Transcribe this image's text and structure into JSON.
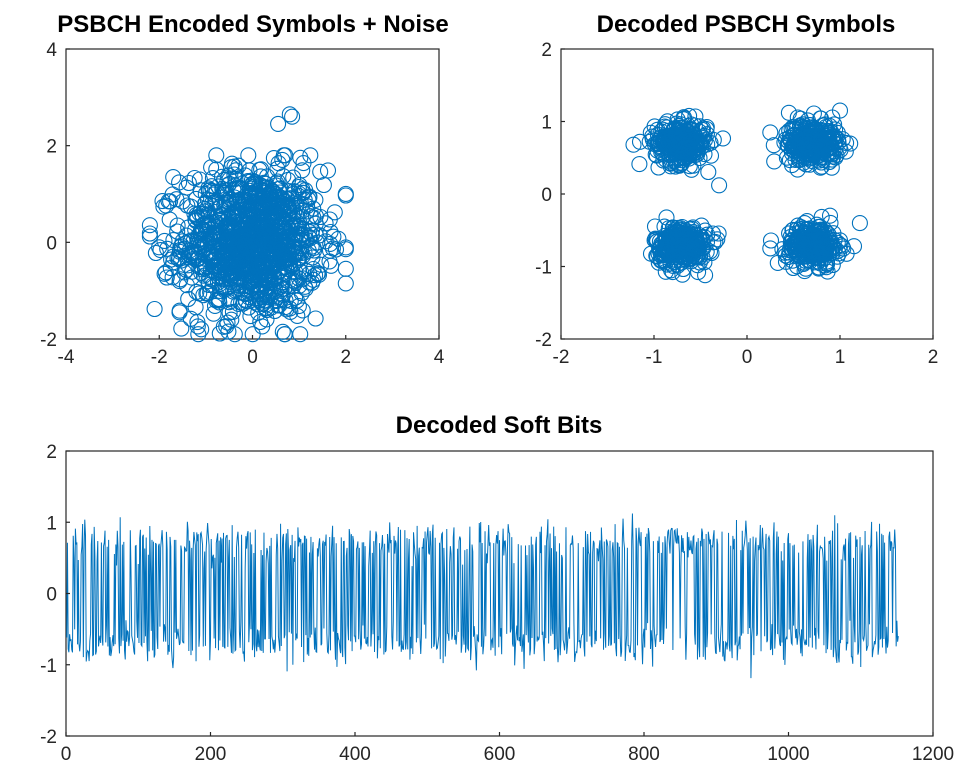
{
  "chart_data": [
    {
      "type": "scatter",
      "title": "PSBCH Encoded Symbols + Noise",
      "xlim": [
        -4,
        4
      ],
      "ylim": [
        -2,
        4
      ],
      "xticks": [
        "-4",
        "-2",
        "0",
        "2",
        "4"
      ],
      "yticks": [
        "-2",
        "0",
        "2",
        "4"
      ],
      "marker": "open-circle",
      "color": "#0072BD",
      "grid": false,
      "cluster": {
        "center": [
          0,
          0
        ],
        "std": 0.75,
        "count": 1200
      },
      "outliers": [
        [
          0.55,
          2.45
        ],
        [
          0.8,
          2.65
        ],
        [
          0.85,
          2.6
        ],
        [
          -2.2,
          0.12
        ],
        [
          -2.1,
          -1.38
        ],
        [
          2.0,
          0.97
        ],
        [
          -1.7,
          1.35
        ],
        [
          -1.1,
          -1.8
        ],
        [
          0.65,
          -1.85
        ]
      ]
    },
    {
      "type": "scatter",
      "title": "Decoded PSBCH Symbols",
      "xlim": [
        -2,
        2
      ],
      "ylim": [
        -2,
        2
      ],
      "xticks": [
        "-2",
        "-1",
        "0",
        "1",
        "2"
      ],
      "yticks": [
        "-2",
        "-1",
        "0",
        "1",
        "2"
      ],
      "marker": "open-circle",
      "color": "#0072BD",
      "grid": false,
      "clusters": [
        {
          "center": [
            -0.707,
            0.707
          ],
          "std": 0.14,
          "count": 300
        },
        {
          "center": [
            0.707,
            0.707
          ],
          "std": 0.14,
          "count": 300
        },
        {
          "center": [
            -0.707,
            -0.707
          ],
          "std": 0.14,
          "count": 300
        },
        {
          "center": [
            0.707,
            -0.707
          ],
          "std": 0.14,
          "count": 300
        }
      ],
      "outliers": [
        [
          -0.3,
          0.12
        ],
        [
          -1.15,
          0.72
        ],
        [
          -1.22,
          0.68
        ],
        [
          -0.45,
          -1.12
        ],
        [
          0.45,
          1.12
        ],
        [
          1.0,
          1.15
        ],
        [
          0.25,
          -0.75
        ],
        [
          1.15,
          -0.72
        ],
        [
          0.25,
          0.85
        ]
      ]
    },
    {
      "type": "line",
      "title": "Decoded Soft Bits",
      "xlim": [
        0,
        1200
      ],
      "ylim": [
        -2,
        2
      ],
      "xticks": [
        "0",
        "200",
        "400",
        "600",
        "800",
        "1000",
        "1200"
      ],
      "yticks": [
        "-2",
        "-1",
        "0",
        "1",
        "2"
      ],
      "color": "#0072BD",
      "grid": false,
      "n_points": 1152,
      "levels": [
        -0.707,
        0.707
      ],
      "noise_std": 0.14,
      "y_range_observed": [
        -1.2,
        1.15
      ]
    }
  ]
}
